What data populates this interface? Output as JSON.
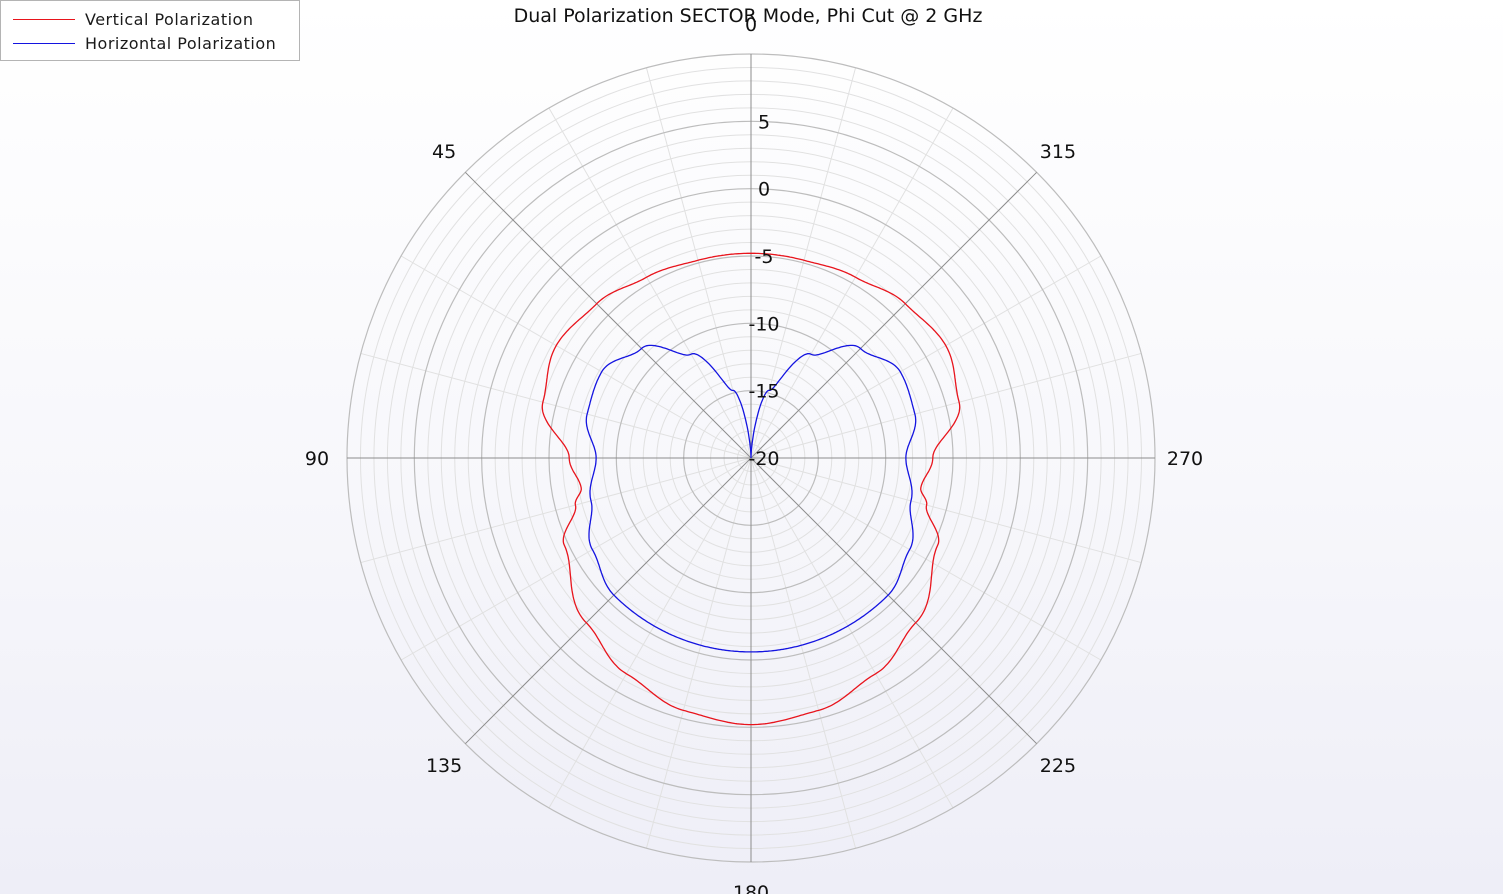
{
  "chart_data": {
    "type": "polar-line",
    "title": "Dual Polarization SECTOR Mode, Phi Cut @ 2 GHz",
    "angle_unit": "deg",
    "angle_direction": "counterclockwise",
    "zero_location": "top",
    "angle_ticks": [
      0,
      45,
      90,
      135,
      180,
      225,
      270,
      315
    ],
    "r_ticks": [
      -20,
      -15,
      -10,
      -5,
      0,
      5
    ],
    "r_range": [
      -20,
      10
    ],
    "grid": true,
    "legend_position": "top-left",
    "series": [
      {
        "name": "Vertical Polarization",
        "color": "#e8141c",
        "angles": [
          0,
          15,
          30,
          45,
          60,
          75,
          90,
          100,
          105,
          115,
          135,
          150,
          165,
          180,
          195,
          210,
          225,
          245,
          255,
          260,
          270,
          285,
          300,
          315,
          330,
          345,
          360
        ],
        "values": [
          -4.8,
          -4.8,
          -4.5,
          -3.8,
          -3.3,
          -4.0,
          -6.5,
          -7.2,
          -6.5,
          -4.7,
          -2.7,
          -1.5,
          -0.6,
          -0.2,
          -0.6,
          -1.5,
          -2.7,
          -4.7,
          -6.5,
          -7.2,
          -6.5,
          -4.0,
          -3.3,
          -3.8,
          -4.5,
          -4.8,
          -4.8
        ]
      },
      {
        "name": "Horizontal Polarization",
        "color": "#1414e0",
        "angles": [
          0,
          15,
          30,
          45,
          60,
          75,
          90,
          105,
          120,
          135,
          150,
          165,
          180,
          195,
          210,
          225,
          240,
          255,
          270,
          285,
          300,
          315,
          330,
          345,
          360
        ],
        "values": [
          -20,
          -14.8,
          -11.1,
          -8.5,
          -7.2,
          -7.4,
          -8.5,
          -7.7,
          -6.4,
          -5.6,
          -5.6,
          -5.6,
          -5.6,
          -5.6,
          -5.6,
          -5.6,
          -6.4,
          -7.7,
          -8.5,
          -7.4,
          -7.2,
          -8.5,
          -11.1,
          -14.8,
          -20
        ]
      }
    ]
  },
  "colors": {
    "grid_major": "#bdbdbd",
    "grid_minor": "#e1e1e1",
    "spokes": "#8c8c8c",
    "text": "#111111"
  }
}
